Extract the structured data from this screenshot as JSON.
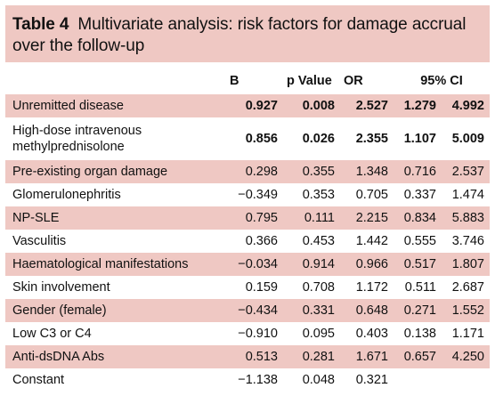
{
  "table": {
    "label": "Table 4",
    "title": "Multivariate analysis: risk factors for damage accrual over the follow-up",
    "headers": {
      "b": "B",
      "p": "p Value",
      "or": "OR",
      "ci": "95% CI"
    },
    "rows": [
      {
        "name": "Unremitted disease",
        "b": "0.927",
        "p": "0.008",
        "or": "2.527",
        "ci_low": "1.279",
        "ci_high": "4.992",
        "bold": true,
        "shaded": true
      },
      {
        "name": "High-dose intravenous methylprednisolone",
        "b": "0.856",
        "p": "0.026",
        "or": "2.355",
        "ci_low": "1.107",
        "ci_high": "5.009",
        "bold": true,
        "shaded": false
      },
      {
        "name": "Pre-existing organ damage",
        "b": "0.298",
        "p": "0.355",
        "or": "1.348",
        "ci_low": "0.716",
        "ci_high": "2.537",
        "bold": false,
        "shaded": true
      },
      {
        "name": "Glomerulonephritis",
        "b": "−0.349",
        "p": "0.353",
        "or": "0.705",
        "ci_low": "0.337",
        "ci_high": "1.474",
        "bold": false,
        "shaded": false
      },
      {
        "name": "NP-SLE",
        "b": "0.795",
        "p": "0.111",
        "or": "2.215",
        "ci_low": "0.834",
        "ci_high": "5.883",
        "bold": false,
        "shaded": true
      },
      {
        "name": "Vasculitis",
        "b": "0.366",
        "p": "0.453",
        "or": "1.442",
        "ci_low": "0.555",
        "ci_high": "3.746",
        "bold": false,
        "shaded": false
      },
      {
        "name": "Haematological manifestations",
        "b": "−0.034",
        "p": "0.914",
        "or": "0.966",
        "ci_low": "0.517",
        "ci_high": "1.807",
        "bold": false,
        "shaded": true
      },
      {
        "name": "Skin involvement",
        "b": "0.159",
        "p": "0.708",
        "or": "1.172",
        "ci_low": "0.511",
        "ci_high": "2.687",
        "bold": false,
        "shaded": false
      },
      {
        "name": "Gender (female)",
        "b": "−0.434",
        "p": "0.331",
        "or": "0.648",
        "ci_low": "0.271",
        "ci_high": "1.552",
        "bold": false,
        "shaded": true
      },
      {
        "name": "Low C3 or C4",
        "b": "−0.910",
        "p": "0.095",
        "or": "0.403",
        "ci_low": "0.138",
        "ci_high": "1.171",
        "bold": false,
        "shaded": false
      },
      {
        "name": "Anti-dsDNA Abs",
        "b": "0.513",
        "p": "0.281",
        "or": "1.671",
        "ci_low": "0.657",
        "ci_high": "4.250",
        "bold": false,
        "shaded": true
      },
      {
        "name": "Constant",
        "b": "−1.138",
        "p": "0.048",
        "or": "0.321",
        "ci_low": "",
        "ci_high": "",
        "bold": false,
        "shaded": false
      }
    ]
  },
  "colors": {
    "shade": "#efc8c3"
  }
}
